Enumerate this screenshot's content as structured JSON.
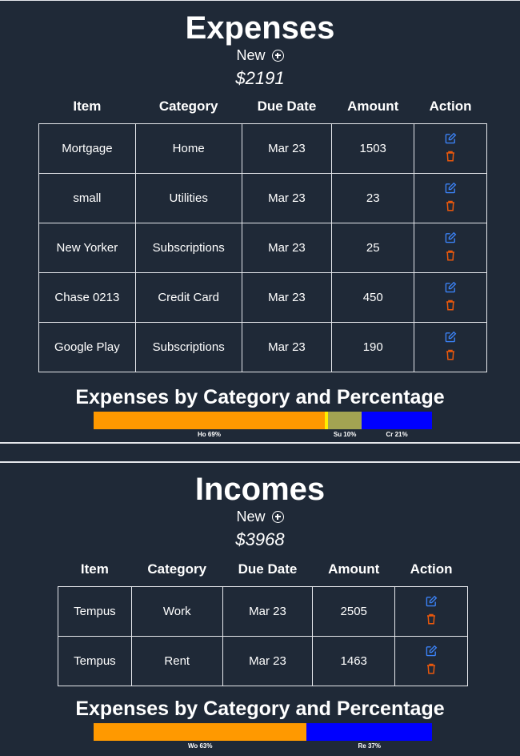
{
  "expenses": {
    "title": "Expenses",
    "new_label": "New",
    "total": "$2191",
    "headers": [
      "Item",
      "Category",
      "Due Date",
      "Amount",
      "Action"
    ],
    "rows": [
      {
        "item": "Mortgage",
        "category": "Home",
        "due": "Mar 23",
        "amount": "1503"
      },
      {
        "item": "small",
        "category": "Utilities",
        "due": "Mar 23",
        "amount": "23"
      },
      {
        "item": "New Yorker",
        "category": "Subscriptions",
        "due": "Mar 23",
        "amount": "25"
      },
      {
        "item": "Chase 0213",
        "category": "Credit Card",
        "due": "Mar 23",
        "amount": "450"
      },
      {
        "item": "Google Play",
        "category": "Subscriptions",
        "due": "Mar 23",
        "amount": "190"
      }
    ],
    "chart_title": "Expenses by Category and Percentage",
    "segments": [
      {
        "label": "Ho 69%",
        "percent": 69,
        "color": "#ff9900"
      },
      {
        "label": "",
        "percent": 1,
        "color": "#ffee00"
      },
      {
        "label": "Su 10%",
        "percent": 10,
        "color": "#a3a352"
      },
      {
        "label": "Cr 21%",
        "percent": 21,
        "color": "#0000ff"
      }
    ]
  },
  "incomes": {
    "title": "Incomes",
    "new_label": "New",
    "total": "$3968",
    "headers": [
      "Item",
      "Category",
      "Due Date",
      "Amount",
      "Action"
    ],
    "rows": [
      {
        "item": "Tempus",
        "category": "Work",
        "due": "Mar 23",
        "amount": "2505"
      },
      {
        "item": "Tempus",
        "category": "Rent",
        "due": "Mar 23",
        "amount": "1463"
      }
    ],
    "chart_title": "Expenses by Category and Percentage",
    "segments": [
      {
        "label": "Wo 63%",
        "percent": 63,
        "color": "#ff9900"
      },
      {
        "label": "Re 37%",
        "percent": 37,
        "color": "#0000ff"
      }
    ]
  },
  "colors": {
    "edit": "#3b82f6",
    "delete": "#ea580c",
    "background": "#1f2937"
  }
}
